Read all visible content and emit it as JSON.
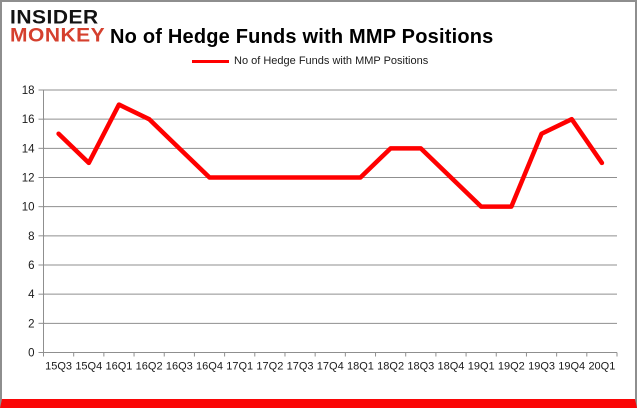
{
  "brand": {
    "line1": "INSIDER",
    "line2": "MONKEY",
    "line1_color": "#121212",
    "line2_color": "#d5402e"
  },
  "title": "No of Hedge Funds with MMP Positions",
  "legend": {
    "label": "No of Hedge Funds with MMP Positions",
    "swatch_color": "#ff0000"
  },
  "chart_data": {
    "type": "line",
    "title": "No of Hedge Funds with MMP Positions",
    "categories": [
      "15Q3",
      "15Q4",
      "16Q1",
      "16Q2",
      "16Q3",
      "16Q4",
      "17Q1",
      "17Q2",
      "17Q3",
      "17Q4",
      "18Q1",
      "18Q2",
      "18Q3",
      "18Q4",
      "19Q1",
      "19Q2",
      "19Q3",
      "19Q4",
      "20Q1"
    ],
    "values": [
      15,
      13,
      17,
      16,
      14,
      12,
      12,
      12,
      12,
      12,
      12,
      14,
      14,
      12,
      10,
      10,
      15,
      16,
      13
    ],
    "xlabel": "",
    "ylabel": "",
    "ylim": [
      0,
      18
    ],
    "ytick_step": 2,
    "grid": true,
    "legend_position": "top-center",
    "line_color": "#ff0000",
    "grid_color": "#8f8f8f",
    "axis_text_color": "#1a1a1a"
  }
}
